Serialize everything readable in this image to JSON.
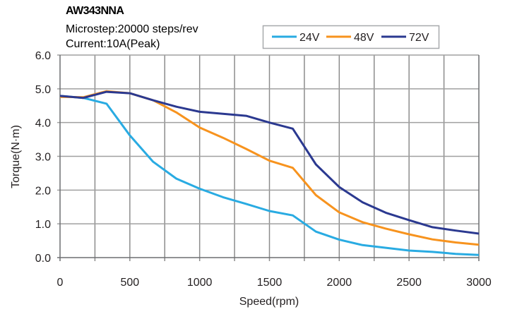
{
  "chart_data": {
    "type": "line",
    "title": "AW343NNA",
    "subtitle_lines": [
      "Microstep:20000 steps/rev",
      "Current:10A(Peak)"
    ],
    "xlabel": "Speed(rpm)",
    "ylabel": "Torque(N·m)",
    "xlim": [
      0,
      3000
    ],
    "ylim": [
      0,
      6
    ],
    "x_ticks": [
      0,
      500,
      1000,
      1500,
      2000,
      2500,
      3000
    ],
    "x_tick_labels": [
      "0",
      "500",
      "1000",
      "1500",
      "2000",
      "2500",
      "3000"
    ],
    "x_minor_grid_step": 250,
    "y_ticks": [
      0,
      1,
      2,
      3,
      4,
      5,
      6
    ],
    "y_tick_labels": [
      "0.0",
      "1.0",
      "2.0",
      "3.0",
      "4.0",
      "5.0",
      "6.0"
    ],
    "grid": true,
    "legend_position": "top-right",
    "x": [
      0,
      167,
      333,
      500,
      667,
      833,
      1000,
      1167,
      1333,
      1500,
      1667,
      1833,
      2000,
      2167,
      2333,
      2500,
      2667,
      2833,
      3000
    ],
    "series": [
      {
        "name": "24V",
        "color": "#29ABE2",
        "values": [
          4.79,
          4.73,
          4.56,
          3.62,
          2.84,
          2.34,
          2.04,
          1.79,
          1.59,
          1.38,
          1.25,
          0.77,
          0.53,
          0.37,
          0.29,
          0.21,
          0.17,
          0.11,
          0.08
        ]
      },
      {
        "name": "48V",
        "color": "#F7931E",
        "values": [
          4.76,
          4.75,
          4.93,
          4.87,
          4.66,
          4.3,
          3.85,
          3.55,
          3.22,
          2.87,
          2.66,
          1.85,
          1.34,
          1.05,
          0.86,
          0.69,
          0.54,
          0.45,
          0.38
        ]
      },
      {
        "name": "72V",
        "color": "#2B3990",
        "values": [
          4.79,
          4.73,
          4.91,
          4.87,
          4.66,
          4.47,
          4.32,
          4.26,
          4.2,
          4.0,
          3.82,
          2.76,
          2.09,
          1.64,
          1.33,
          1.11,
          0.9,
          0.8,
          0.71
        ]
      }
    ]
  }
}
